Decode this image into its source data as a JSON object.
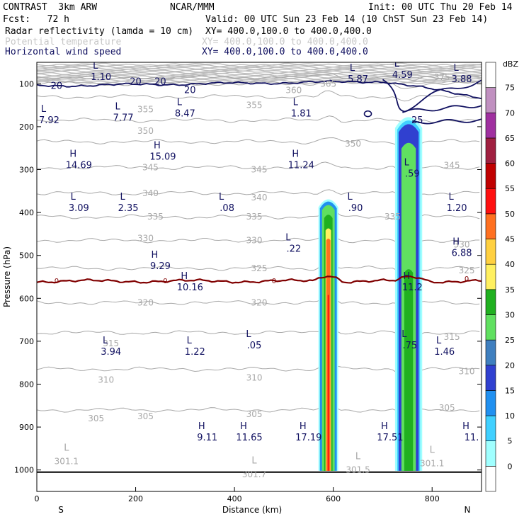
{
  "header": {
    "model": "CONTRAST  3km ARW",
    "org": "NCAR/MMM",
    "init": "Init: 00 UTC Thu 20 Feb 14",
    "fcst": "Fcst:   72 h",
    "valid": "Valid: 00 UTC Sun 23 Feb 14 (10 ChST Sun 23 Feb 14)",
    "fields": [
      {
        "name": "Radar reflectivity (lamda = 10 cm)",
        "xy": "XY= 400.0,100.0 to 400.0,400.0",
        "color": "#000000"
      },
      {
        "name": "Potential temperature",
        "xy": "XY= 400.0,100.0 to 400.0,400.0",
        "color": "#c8c8c8"
      },
      {
        "name": "Horizontal wind speed",
        "xy": "XY= 400.0,100.0 to 400.0,400.0",
        "color": "#101060"
      }
    ]
  },
  "chart_data": {
    "type": "heatmap",
    "xlabel": "Distance (km)",
    "ylabel": "Pressure (hPa)",
    "xlim": [
      0,
      900
    ],
    "ylim": [
      1050,
      50
    ],
    "x_ticks": [
      0,
      200,
      400,
      600,
      800
    ],
    "y_ticks": [
      100,
      200,
      300,
      400,
      500,
      600,
      700,
      800,
      900,
      1000
    ],
    "x_endpoints": {
      "left": "S",
      "right": "N"
    },
    "colorbar": {
      "unit": "dBZ",
      "levels": [
        0,
        5,
        10,
        15,
        20,
        25,
        30,
        35,
        40,
        45,
        50,
        55,
        60,
        65,
        70,
        75
      ],
      "colors": [
        "#ffffff",
        "#a0ffff",
        "#40d0ff",
        "#2090f0",
        "#3040d0",
        "#3f7fbf",
        "#60e060",
        "#20b020",
        "#fff060",
        "#ffd040",
        "#ff7020",
        "#ff1010",
        "#c00000",
        "#a02040",
        "#a030a0",
        "#c090c0",
        "#ffffff"
      ]
    },
    "convective_cells": [
      {
        "x_range": [
          570,
          610
        ],
        "top_hPa": 360,
        "max_dBZ": 55
      },
      {
        "x_range": [
          725,
          780
        ],
        "top_hPa": 165,
        "max_dBZ": 35
      }
    ],
    "theta_contours": [
      {
        "value": 305,
        "p_hPa": 860
      },
      {
        "value": 310,
        "p_hPa": 765
      },
      {
        "value": 315,
        "p_hPa": 680
      },
      {
        "value": 320,
        "p_hPa": 610
      },
      {
        "value": 325,
        "p_hPa": 530
      },
      {
        "value": 330,
        "p_hPa": 465
      },
      {
        "value": 335,
        "p_hPa": 410
      },
      {
        "value": 340,
        "p_hPa": 355
      },
      {
        "value": 345,
        "p_hPa": 295
      },
      {
        "value": 350,
        "p_hPa": 235
      },
      {
        "value": 355,
        "p_hPa": 185
      },
      {
        "value": 360,
        "p_hPa": 130
      },
      {
        "value": 365,
        "p_hPa": 100
      },
      {
        "value": 375,
        "p_hPa": 85
      }
    ],
    "theta_labels": [
      {
        "t": "305",
        "x": 120,
        "p": 880
      },
      {
        "t": "305",
        "x": 220,
        "p": 875
      },
      {
        "t": "305",
        "x": 440,
        "p": 870
      },
      {
        "t": "305",
        "x": 830,
        "p": 855
      },
      {
        "t": "310",
        "x": 140,
        "p": 790
      },
      {
        "t": "310",
        "x": 440,
        "p": 785
      },
      {
        "t": "310",
        "x": 870,
        "p": 770
      },
      {
        "t": "315",
        "x": 150,
        "p": 705
      },
      {
        "t": "315",
        "x": 840,
        "p": 690
      },
      {
        "t": "320",
        "x": 220,
        "p": 610
      },
      {
        "t": "320",
        "x": 450,
        "p": 610
      },
      {
        "t": "325",
        "x": 450,
        "p": 530
      },
      {
        "t": "325",
        "x": 870,
        "p": 535
      },
      {
        "t": "330",
        "x": 220,
        "p": 460
      },
      {
        "t": "330",
        "x": 440,
        "p": 465
      },
      {
        "t": "330",
        "x": 860,
        "p": 475
      },
      {
        "t": "335",
        "x": 240,
        "p": 410
      },
      {
        "t": "335",
        "x": 440,
        "p": 410
      },
      {
        "t": "335",
        "x": 720,
        "p": 410
      },
      {
        "t": "340",
        "x": 230,
        "p": 355
      },
      {
        "t": "340",
        "x": 450,
        "p": 365
      },
      {
        "t": "345",
        "x": 230,
        "p": 295
      },
      {
        "t": "345",
        "x": 450,
        "p": 300
      },
      {
        "t": "345",
        "x": 840,
        "p": 290
      },
      {
        "t": "350",
        "x": 220,
        "p": 210
      },
      {
        "t": "350",
        "x": 640,
        "p": 240
      },
      {
        "t": "355",
        "x": 220,
        "p": 160
      },
      {
        "t": "355",
        "x": 440,
        "p": 150
      },
      {
        "t": "360",
        "x": 520,
        "p": 115
      },
      {
        "t": "365",
        "x": 590,
        "p": 100
      },
      {
        "t": "375",
        "x": 820,
        "p": 85
      },
      {
        "t": "301.1",
        "x": 60,
        "p": 980
      },
      {
        "t": "301.7",
        "x": 440,
        "p": 1010
      },
      {
        "t": "301.5",
        "x": 650,
        "p": 1000
      },
      {
        "t": "301.1",
        "x": 800,
        "p": 985
      }
    ],
    "zero_wind_contour_p_hPa": 560,
    "wind_contour_labels": [
      {
        "t": "20",
        "x": 40,
        "p": 105
      },
      {
        "t": "20",
        "x": 200,
        "p": 95
      },
      {
        "t": "20",
        "x": 250,
        "p": 95
      },
      {
        "t": "20",
        "x": 310,
        "p": 115
      },
      {
        "t": "25",
        "x": 770,
        "p": 185
      }
    ],
    "zero_labels": [
      {
        "t": "0",
        "x": 40,
        "p": 560
      },
      {
        "t": "0",
        "x": 260,
        "p": 560
      },
      {
        "t": "0",
        "x": 480,
        "p": 560
      },
      {
        "t": "0",
        "x": 870,
        "p": 555
      }
    ],
    "extrema": [
      {
        "type": "L",
        "value": "1.10",
        "x": 130,
        "p": 75
      },
      {
        "type": "L",
        "value": "5.87",
        "x": 650,
        "p": 80
      },
      {
        "type": "L",
        "value": "4.59",
        "x": 740,
        "p": 70
      },
      {
        "type": "L",
        "value": "3.88",
        "x": 860,
        "p": 80
      },
      {
        "type": "L",
        "value": "7.92",
        "x": 25,
        "p": 175
      },
      {
        "type": "L",
        "value": "7.77",
        "x": 175,
        "p": 170
      },
      {
        "type": "L",
        "value": "8.47",
        "x": 300,
        "p": 160
      },
      {
        "type": "L",
        "value": "1.81",
        "x": 535,
        "p": 160
      },
      {
        "type": "H",
        "value": "14.69",
        "x": 85,
        "p": 280
      },
      {
        "type": "H",
        "value": "15.09",
        "x": 255,
        "p": 260
      },
      {
        "type": "H",
        "value": "11.24",
        "x": 535,
        "p": 280
      },
      {
        "type": "L",
        "value": "3.09",
        "x": 85,
        "p": 380
      },
      {
        "type": "L",
        "value": "2.35",
        "x": 185,
        "p": 380
      },
      {
        "type": "L",
        "value": ".08",
        "x": 385,
        "p": 380
      },
      {
        "type": "L",
        "value": ".90",
        "x": 645,
        "p": 380
      },
      {
        "type": "L",
        "value": ".59",
        "x": 760,
        "p": 300
      },
      {
        "type": "L",
        "value": "1.20",
        "x": 850,
        "p": 380
      },
      {
        "type": "L",
        "value": ".22",
        "x": 520,
        "p": 475
      },
      {
        "type": "H",
        "value": "6.88",
        "x": 860,
        "p": 485
      },
      {
        "type": "H",
        "value": "9.29",
        "x": 250,
        "p": 515
      },
      {
        "type": "H",
        "value": "10.16",
        "x": 310,
        "p": 565
      },
      {
        "type": "H",
        "value": "11.2",
        "x": 760,
        "p": 565
      },
      {
        "type": "L",
        "value": ".05",
        "x": 440,
        "p": 700
      },
      {
        "type": "L",
        "value": ".75",
        "x": 755,
        "p": 700
      },
      {
        "type": "L",
        "value": "3.94",
        "x": 150,
        "p": 715
      },
      {
        "type": "L",
        "value": "1.22",
        "x": 320,
        "p": 715
      },
      {
        "type": "L",
        "value": "1.46",
        "x": 825,
        "p": 715
      },
      {
        "type": "H",
        "value": "9.11",
        "x": 345,
        "p": 915
      },
      {
        "type": "H",
        "value": "11.65",
        "x": 430,
        "p": 915
      },
      {
        "type": "H",
        "value": "17.19",
        "x": 550,
        "p": 915
      },
      {
        "type": "H",
        "value": "17.51",
        "x": 715,
        "p": 915
      },
      {
        "type": "H",
        "value": "11.",
        "x": 880,
        "p": 915
      }
    ]
  }
}
